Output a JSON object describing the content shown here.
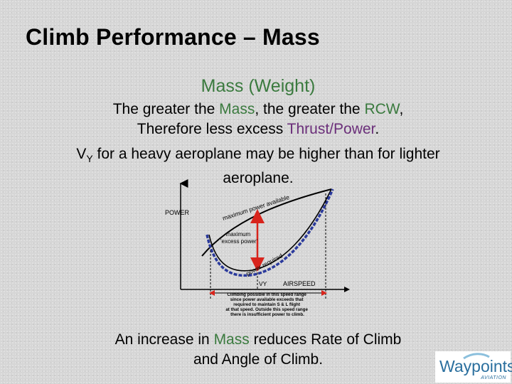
{
  "slide": {
    "title": "Climb Performance – Mass",
    "subtitle": "Mass (Weight)",
    "line1": {
      "a": "The greater the ",
      "b": "Mass",
      "c": ", the greater the ",
      "d": "RCW",
      "e": ","
    },
    "line2": {
      "a": "Therefore less excess ",
      "b": "Thrust/Power",
      "c": "."
    },
    "line3": {
      "v": "V",
      "sub": "Y",
      "rest": " for a heavy aeroplane may be higher than for lighter"
    },
    "line4": "aeroplane.",
    "bottom1": {
      "a": "An increase in ",
      "b": "Mass",
      "c": " reduces Rate of Climb"
    },
    "bottom2": "and Angle of Climb."
  },
  "diagram": {
    "y_label": "POWER",
    "x_label": "AIRSPEED",
    "vy_label": "VY",
    "available_label": "maximum power available",
    "required_label": "power required",
    "excess_label_1": "maximum",
    "excess_label_2": "'excess power'",
    "note": [
      "Climbing possible in this speed range",
      "since power available exceeds that",
      "required to maintain S & L flight",
      "at that speed. Outside this speed range",
      "there is insufficient power to climb."
    ],
    "colors": {
      "heavy_curve": "#2b3a9c",
      "excess_arrow": "#d8241c"
    }
  },
  "logo": {
    "name": "Waypoints",
    "sub": "AVIATION",
    "color": "#2a6f9e"
  }
}
